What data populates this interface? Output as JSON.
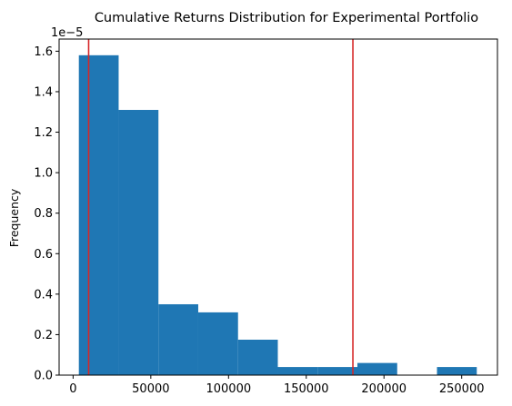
{
  "chart_data": {
    "type": "bar",
    "title": "Cumulative Returns Distribution for Experimental Portfolio",
    "xlabel": "",
    "ylabel": "Frequency",
    "y_offset_label": "1e−5",
    "y_scale_factor": 1e-05,
    "xlim": [
      -9000,
      273000
    ],
    "ylim": [
      0,
      1.66
    ],
    "x_ticks": [
      0,
      50000,
      100000,
      150000,
      200000,
      250000
    ],
    "x_tick_labels": [
      "0",
      "50000",
      "100000",
      "150000",
      "200000",
      "250000"
    ],
    "y_ticks": [
      0.0,
      0.2,
      0.4,
      0.6,
      0.8,
      1.0,
      1.2,
      1.4,
      1.6
    ],
    "y_tick_labels": [
      "0.0",
      "0.2",
      "0.4",
      "0.6",
      "0.8",
      "1.0",
      "1.2",
      "1.4",
      "1.6"
    ],
    "bins": [
      {
        "x0": 3700,
        "x1": 29300,
        "value": 1.58
      },
      {
        "x0": 29300,
        "x1": 54900,
        "value": 1.31
      },
      {
        "x0": 54900,
        "x1": 80500,
        "value": 0.35
      },
      {
        "x0": 80500,
        "x1": 106100,
        "value": 0.31
      },
      {
        "x0": 106100,
        "x1": 131700,
        "value": 0.175
      },
      {
        "x0": 131700,
        "x1": 157300,
        "value": 0.04
      },
      {
        "x0": 157300,
        "x1": 182900,
        "value": 0.04
      },
      {
        "x0": 182900,
        "x1": 208500,
        "value": 0.06
      },
      {
        "x0": 208500,
        "x1": 234100,
        "value": 0.0
      },
      {
        "x0": 234100,
        "x1": 259700,
        "value": 0.04
      }
    ],
    "vertical_lines": [
      {
        "x": 10000
      },
      {
        "x": 180000
      }
    ],
    "grid": false,
    "colors": {
      "bar": "#1f77b4",
      "vline": "#d62728",
      "axis": "#000000"
    }
  }
}
